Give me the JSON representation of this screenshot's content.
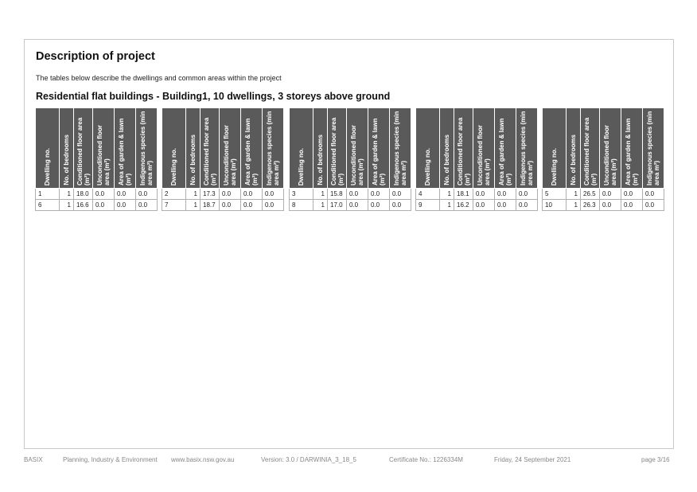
{
  "title": "Description of project",
  "intro": "The tables below describe the dwellings and common areas within the project",
  "section_heading": "Residential flat buildings - Building1, 10 dwellings, 3 storeys above ground",
  "column_headers": [
    "Dwelling no.",
    "No. of bedrooms",
    "Conditioned floor area (m²)",
    "Unconditioned floor area (m²)",
    "Area of garden & lawn (m²)",
    "Indigenous species (min area m²)"
  ],
  "tables": [
    {
      "rows": [
        [
          "1",
          "1",
          "18.0",
          "0.0",
          "0.0",
          "0.0"
        ],
        [
          "6",
          "1",
          "16.6",
          "0.0",
          "0.0",
          "0.0"
        ]
      ]
    },
    {
      "rows": [
        [
          "2",
          "1",
          "17.3",
          "0.0",
          "0.0",
          "0.0"
        ],
        [
          "7",
          "1",
          "18.7",
          "0.0",
          "0.0",
          "0.0"
        ]
      ]
    },
    {
      "rows": [
        [
          "3",
          "1",
          "15.8",
          "0.0",
          "0.0",
          "0.0"
        ],
        [
          "8",
          "1",
          "17.0",
          "0.0",
          "0.0",
          "0.0"
        ]
      ]
    },
    {
      "rows": [
        [
          "4",
          "1",
          "18.1",
          "0.0",
          "0.0",
          "0.0"
        ],
        [
          "9",
          "1",
          "16.2",
          "0.0",
          "0.0",
          "0.0"
        ]
      ]
    },
    {
      "rows": [
        [
          "5",
          "1",
          "26.5",
          "0.0",
          "0.0",
          "0.0"
        ],
        [
          "10",
          "1",
          "26.3",
          "0.0",
          "0.0",
          "0.0"
        ]
      ]
    }
  ],
  "footer": {
    "basix": "BASIX",
    "department": "Planning, Industry & Environment",
    "website": "www.basix.nsw.gov.au",
    "version": "Version: 3.0 / DARWINIA_3_18_5",
    "certificate": "Certificate No.: 1226334M",
    "date": "Friday, 24 September 2021",
    "page": "page 3/16"
  }
}
